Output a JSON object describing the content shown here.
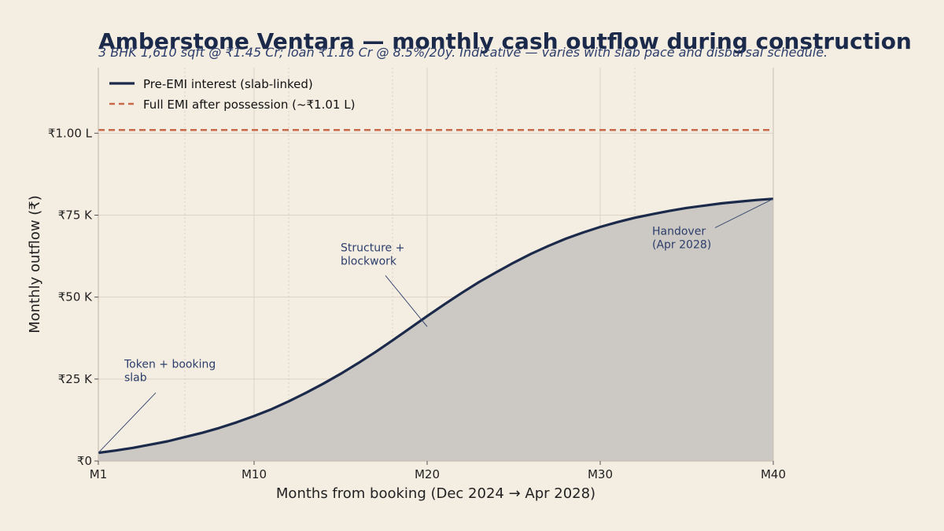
{
  "chart_data": {
    "type": "area",
    "title": "Amberstone Ventara — monthly cash outflow during construction",
    "subtitle": "3 BHK 1,610 sqft @ ₹1.45 Cr; loan ₹1.16 Cr @ 8.5%/20y. Indicative — varies with slab pace and disbursal schedule.",
    "xlabel": "Months from booking (Dec 2024 → Apr 2028)",
    "ylabel": "Monthly outflow (₹)",
    "xlim": [
      1,
      40
    ],
    "ylim": [
      0,
      120000
    ],
    "x_ticks": [
      {
        "value": 1,
        "label": "M1"
      },
      {
        "value": 10,
        "label": "M10"
      },
      {
        "value": 20,
        "label": "M20"
      },
      {
        "value": 30,
        "label": "M30"
      },
      {
        "value": 40,
        "label": "M40"
      }
    ],
    "y_ticks": [
      {
        "value": 0,
        "label": "₹0"
      },
      {
        "value": 25000,
        "label": "₹25 K"
      },
      {
        "value": 50000,
        "label": "₹50 K"
      },
      {
        "value": 75000,
        "label": "₹75 K"
      },
      {
        "value": 100000,
        "label": "₹1.00 L"
      }
    ],
    "minor_vlines": [
      6,
      12,
      18,
      24,
      32
    ],
    "grid": true,
    "legend": "top-left",
    "series": [
      {
        "name": "Pre-EMI interest (slab-linked)",
        "color": "#1b2a4a",
        "style": "solid",
        "fill": "#ccc8c3",
        "x": [
          1,
          2,
          3,
          4,
          5,
          6,
          7,
          8,
          9,
          10,
          11,
          12,
          13,
          14,
          15,
          16,
          17,
          18,
          19,
          20,
          21,
          22,
          23,
          24,
          25,
          26,
          27,
          28,
          29,
          30,
          31,
          32,
          33,
          34,
          35,
          36,
          37,
          38,
          39,
          40
        ],
        "y": [
          2500,
          3200,
          4000,
          5000,
          6000,
          7300,
          8600,
          10100,
          11800,
          13700,
          15800,
          18200,
          20800,
          23600,
          26600,
          29800,
          33200,
          36800,
          40500,
          44200,
          47800,
          51300,
          54600,
          57600,
          60500,
          63200,
          65600,
          67800,
          69700,
          71400,
          72900,
          74200,
          75300,
          76300,
          77200,
          77900,
          78600,
          79100,
          79600,
          80000
        ]
      },
      {
        "name": "Full EMI after possession (~₹1.01 L)",
        "color": "#c8694a",
        "style": "dashed",
        "x": [
          1,
          40
        ],
        "y": [
          101000,
          101000
        ]
      }
    ],
    "annotations": [
      {
        "text": [
          "Token + booking",
          "slab"
        ],
        "point": [
          1,
          2500
        ],
        "text_at": [
          2.5,
          28500
        ]
      },
      {
        "text": [
          "Structure +",
          "blockwork"
        ],
        "point": [
          20,
          41000
        ],
        "text_at": [
          15,
          64000
        ]
      },
      {
        "text": [
          "Handover",
          "(Apr 2028)"
        ],
        "point": [
          40,
          80000
        ],
        "text_at": [
          33,
          69000
        ]
      }
    ]
  }
}
